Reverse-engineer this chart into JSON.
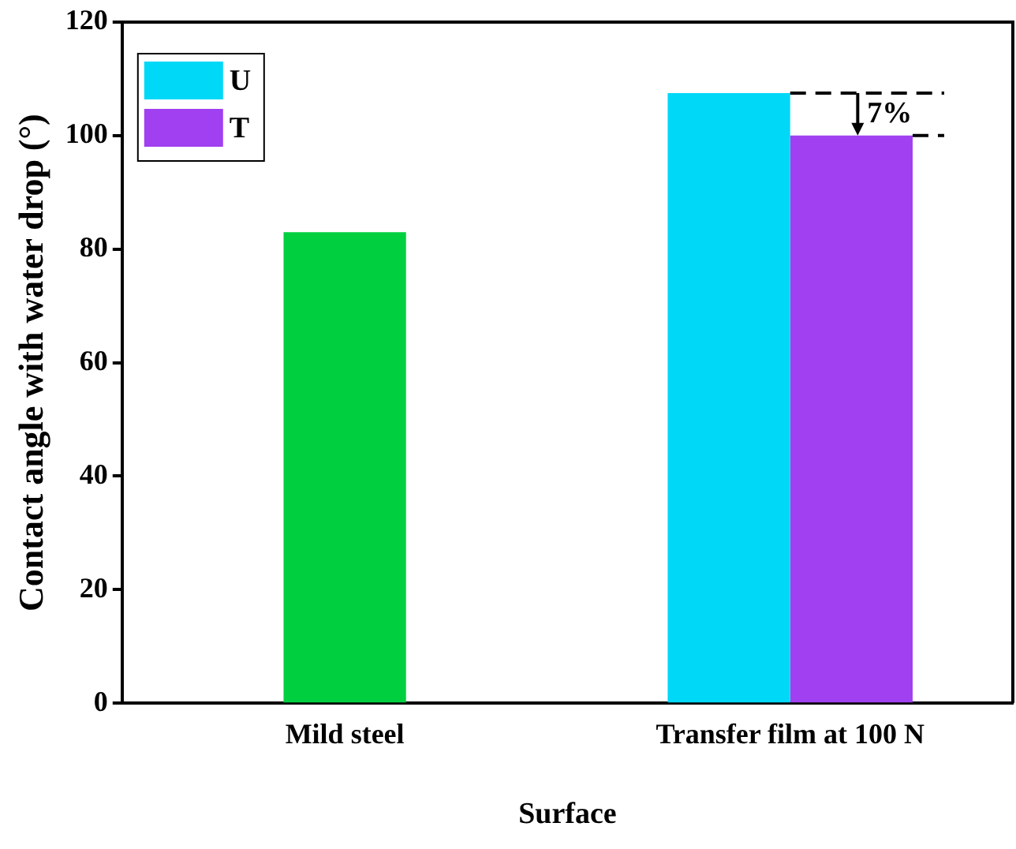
{
  "chart_data": {
    "type": "bar",
    "xlabel": "Surface",
    "ylabel": "Contact angle with water drop (°)",
    "categories": [
      "Mild steel",
      "Transfer film at 100 N"
    ],
    "series": [
      {
        "color": "#00d040",
        "values": [
          83,
          null
        ]
      },
      {
        "name": "U",
        "color": "#00d8f8",
        "values": [
          null,
          107.5
        ]
      },
      {
        "name": "T",
        "color": "#a040f0",
        "values": [
          null,
          100
        ]
      }
    ],
    "ylim": [
      0,
      120
    ],
    "yticks": [
      0,
      20,
      40,
      60,
      80,
      100,
      120
    ],
    "grid": false,
    "legend": "top left",
    "annotations": [
      {
        "text": "7%",
        "x": "Transfer film at 100 N",
        "y": 107.5
      }
    ]
  }
}
